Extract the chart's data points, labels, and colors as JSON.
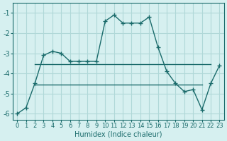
{
  "xlabel": "Humidex (Indice chaleur)",
  "background_color": "#d6f0f0",
  "grid_color": "#b0d8d8",
  "line_color": "#1a6b6b",
  "xlim": [
    -0.5,
    23.5
  ],
  "ylim": [
    -6.3,
    -0.5
  ],
  "xticks": [
    0,
    1,
    2,
    3,
    4,
    5,
    6,
    7,
    8,
    9,
    10,
    11,
    12,
    13,
    14,
    15,
    16,
    17,
    18,
    19,
    20,
    21,
    22,
    23
  ],
  "yticks": [
    -6,
    -5,
    -4,
    -3,
    -2,
    -1
  ],
  "main_x": [
    0,
    1,
    2,
    3,
    4,
    5,
    6,
    7,
    8,
    9,
    10,
    11,
    12,
    13,
    14,
    15,
    16,
    17,
    18,
    19,
    20,
    21,
    22,
    23
  ],
  "main_y": [
    -6.0,
    -5.7,
    -4.5,
    -3.1,
    -2.9,
    -3.0,
    -3.4,
    -3.4,
    -3.4,
    -3.4,
    -1.4,
    -1.1,
    -1.5,
    -1.5,
    -1.5,
    -1.2,
    -2.7,
    -3.9,
    -4.5,
    -4.9,
    -4.8,
    -5.8,
    -4.5,
    -3.6
  ],
  "line1_x": [
    2,
    3,
    4,
    5,
    6,
    7,
    8,
    9,
    10,
    11,
    12,
    13,
    14,
    15,
    16,
    17,
    18,
    19,
    20,
    21,
    22
  ],
  "line1_y": [
    -3.55,
    -3.55,
    -3.55,
    -3.55,
    -3.55,
    -3.55,
    -3.55,
    -3.55,
    -3.55,
    -3.55,
    -3.55,
    -3.55,
    -3.55,
    -3.55,
    -3.55,
    -3.55,
    -3.55,
    -3.55,
    -3.55,
    -3.55,
    -3.55
  ],
  "line2_x": [
    2,
    3,
    4,
    5,
    6,
    7,
    8,
    9,
    10,
    11,
    12,
    13,
    14,
    15,
    16,
    17,
    18,
    19,
    20,
    21
  ],
  "line2_y": [
    -4.55,
    -4.55,
    -4.55,
    -4.55,
    -4.55,
    -4.55,
    -4.55,
    -4.55,
    -4.55,
    -4.55,
    -4.55,
    -4.55,
    -4.55,
    -4.55,
    -4.55,
    -4.55,
    -4.55,
    -4.55,
    -4.55,
    -4.55
  ]
}
